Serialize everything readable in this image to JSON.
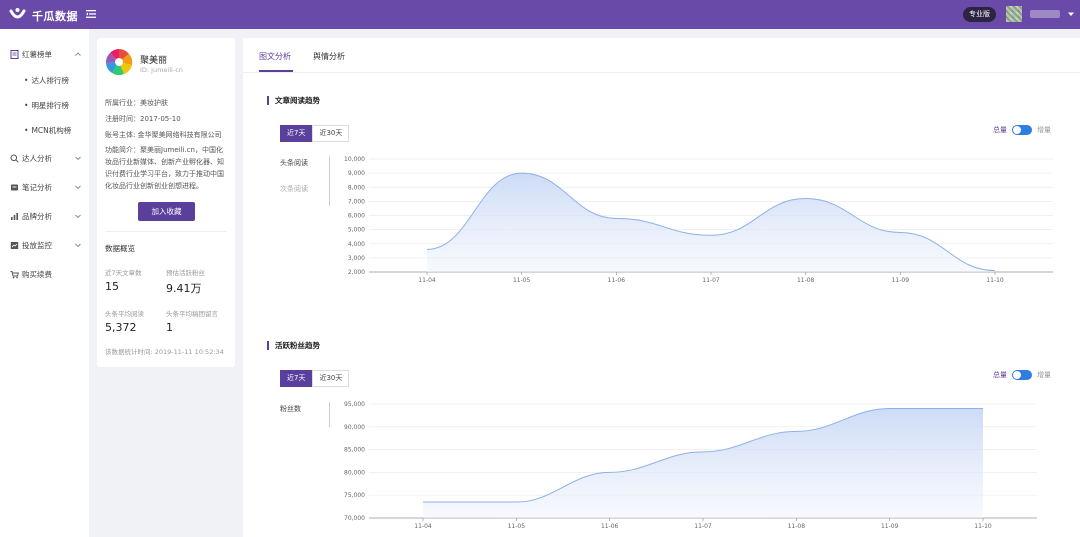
{
  "topbar": {
    "brand": "千瓜数据",
    "pro_badge": "专业版",
    "logo_icon": "logo-icon",
    "menu_icon": "menu-toggle-icon"
  },
  "sidebar": {
    "groups": [
      {
        "label": "红薯榜单",
        "icon": "book-icon",
        "expanded": true,
        "subitems": [
          "达人排行榜",
          "明星排行榜",
          "MCN机构榜"
        ]
      },
      {
        "label": "达人分析",
        "icon": "search-icon"
      },
      {
        "label": "笔记分析",
        "icon": "note-icon"
      },
      {
        "label": "品牌分析",
        "icon": "bar-chart-icon"
      },
      {
        "label": "投放监控",
        "icon": "monitor-icon"
      },
      {
        "label": "购买续费",
        "icon": "cart-icon"
      }
    ]
  },
  "profile": {
    "name": "聚美丽",
    "id": "ID: jumeili-cn",
    "industry": "所属行业：美妆护肤",
    "register_time": "注册时间：2017-05-10",
    "owner": "账号主体: 金华聚美网络科技有限公司",
    "intro": "功能简介：聚美丽Jumeili.cn，中国化妆品行业新媒体、创新产业孵化器、知识付费行业学习平台，致力于推动中国化妆品行业创新创业创想进程。",
    "collect_button": "加入收藏",
    "overview_title": "数据概览",
    "stats": [
      {
        "label": "近7天文章数",
        "value": "15"
      },
      {
        "label": "预估活跃粉丝",
        "value": "9.41万"
      },
      {
        "label": "头条平均阅读",
        "value": "5,372"
      },
      {
        "label": "头条平均稿团留言",
        "value": "1"
      }
    ],
    "stat_time": "该数据统计时间: 2019-11-11 10:52:34"
  },
  "main": {
    "tabs": [
      {
        "label": "图文分析",
        "active": true
      },
      {
        "label": "舆情分析",
        "active": false
      }
    ],
    "accent_color": "#5b3f9d",
    "toggle_color": "#2f7de1"
  },
  "read_section": {
    "title": "文章阅读趋势",
    "range_buttons": [
      {
        "label": "近7天",
        "active": true
      },
      {
        "label": "近30天",
        "active": false
      }
    ],
    "toggle_left": "总量",
    "toggle_right": "增量",
    "metric_tabs": [
      {
        "label": "头条阅读",
        "active": true
      },
      {
        "label": "次条阅读",
        "active": false
      }
    ]
  },
  "fans_section": {
    "title": "活跃粉丝趋势",
    "range_buttons": [
      {
        "label": "近7天",
        "active": true
      },
      {
        "label": "近30天",
        "active": false
      }
    ],
    "toggle_left": "总量",
    "toggle_right": "增量",
    "metric_tabs": [
      {
        "label": "粉丝数",
        "active": true
      }
    ]
  },
  "chart_data": [
    {
      "type": "area",
      "x": [
        "11-04",
        "11-05",
        "11-06",
        "11-07",
        "11-08",
        "11-09",
        "11-10"
      ],
      "values": [
        3600,
        9000,
        5800,
        4600,
        7200,
        4800,
        2100
      ],
      "ylim": [
        2000,
        10000
      ],
      "yticks": [
        "2,000",
        "3,000",
        "4,000",
        "5,000",
        "6,000",
        "7,000",
        "8,000",
        "9,000",
        "10,000"
      ],
      "ytick_values": [
        2000,
        3000,
        4000,
        5000,
        6000,
        7000,
        8000,
        9000,
        10000
      ],
      "grid": true,
      "color": "#8fb0e8"
    },
    {
      "type": "area",
      "x": [
        "11-04",
        "11-05",
        "11-06",
        "11-07",
        "11-08",
        "11-09",
        "11-10"
      ],
      "values": [
        73500,
        73500,
        80000,
        84500,
        89000,
        94000,
        94000
      ],
      "ylim": [
        70000,
        95000
      ],
      "yticks": [
        "70,000",
        "75,000",
        "80,000",
        "85,000",
        "90,000",
        "95,000"
      ],
      "ytick_values": [
        70000,
        75000,
        80000,
        85000,
        90000,
        95000
      ],
      "grid": true,
      "color": "#8fb0e8"
    }
  ]
}
